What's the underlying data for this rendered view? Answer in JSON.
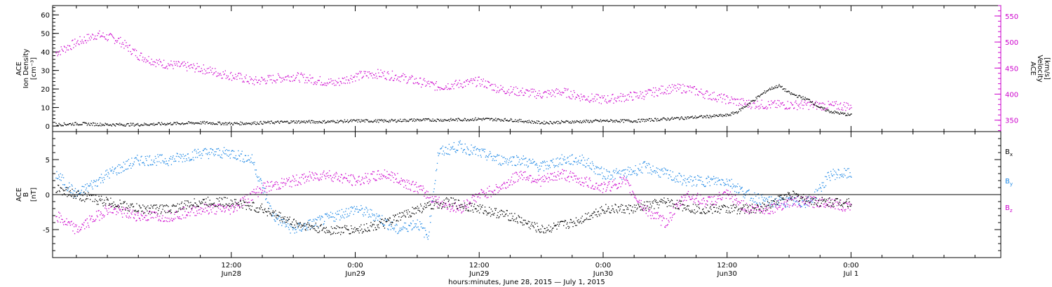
{
  "xlabel": "hours:minutes, June 28, 2015 — July  1, 2015",
  "x_ticks": [
    {
      "hour": 12,
      "time": "12:00",
      "day": "Jun28"
    },
    {
      "hour": 24,
      "time": "0:00",
      "day": "Jun29"
    },
    {
      "hour": 36,
      "time": "12:00",
      "day": "Jun29"
    },
    {
      "hour": 48,
      "time": "0:00",
      "day": "Jun30"
    },
    {
      "hour": 60,
      "time": "12:00",
      "day": "Jun30"
    },
    {
      "hour": 72,
      "time": "0:00",
      "day": "Jul 1"
    }
  ],
  "chart_data": [
    {
      "type": "scatter",
      "panel": "top",
      "xlabel": "hours:minutes, June 28, 2015 — July  1, 2015",
      "x_unit": "hours since 2015-06-28 00:00",
      "xlim": [
        -5.3,
        86.5
      ],
      "ylabel_left": [
        "ACE",
        "Ion Density",
        "[cm⁻³]"
      ],
      "ylabel_right": [
        "ACE",
        "Velocity",
        "[km/s]"
      ],
      "ylim_left": [
        -3,
        65
      ],
      "ylim_right": [
        328,
        570
      ],
      "yticks_left": [
        0,
        10,
        20,
        30,
        40,
        50,
        60
      ],
      "yticks_right": [
        350,
        400,
        450,
        500,
        550
      ],
      "series": [
        {
          "axis": "left",
          "color": "#000000",
          "points": [
            [
              -5,
              1
            ],
            [
              -3,
              1.5
            ],
            [
              0,
              1
            ],
            [
              3,
              1
            ],
            [
              6,
              1.5
            ],
            [
              9,
              2
            ],
            [
              12,
              1.5
            ],
            [
              15,
              2
            ],
            [
              18,
              2.5
            ],
            [
              21,
              2.5
            ],
            [
              24,
              3
            ],
            [
              27,
              3
            ],
            [
              30,
              3.5
            ],
            [
              33,
              3.5
            ],
            [
              36,
              4
            ],
            [
              39,
              3.5
            ],
            [
              42,
              2
            ],
            [
              45,
              2.5
            ],
            [
              48,
              3
            ],
            [
              51,
              3
            ],
            [
              54,
              4
            ],
            [
              57,
              5
            ],
            [
              60,
              6
            ],
            [
              61,
              8
            ],
            [
              62,
              12
            ],
            [
              63,
              16
            ],
            [
              64,
              20
            ],
            [
              65,
              22
            ],
            [
              66,
              18
            ],
            [
              67,
              16
            ],
            [
              68,
              14
            ],
            [
              69,
              10
            ],
            [
              70,
              8
            ],
            [
              71,
              7
            ],
            [
              72,
              6
            ]
          ]
        },
        {
          "axis": "right",
          "color": "#cc00cc",
          "points": [
            [
              -5,
              480
            ],
            [
              -3,
              500
            ],
            [
              -1,
              515
            ],
            [
              1,
              505
            ],
            [
              3,
              475
            ],
            [
              5,
              460
            ],
            [
              7,
              455
            ],
            [
              9,
              450
            ],
            [
              11,
              440
            ],
            [
              13,
              432
            ],
            [
              14,
              425
            ],
            [
              16,
              430
            ],
            [
              18,
              435
            ],
            [
              20,
              428
            ],
            [
              22,
              422
            ],
            [
              24,
              435
            ],
            [
              26,
              440
            ],
            [
              28,
              435
            ],
            [
              30,
              425
            ],
            [
              32,
              415
            ],
            [
              34,
              420
            ],
            [
              36,
              425
            ],
            [
              38,
              410
            ],
            [
              40,
              405
            ],
            [
              42,
              400
            ],
            [
              44,
              405
            ],
            [
              46,
              395
            ],
            [
              48,
              390
            ],
            [
              50,
              395
            ],
            [
              52,
              400
            ],
            [
              54,
              410
            ],
            [
              56,
              412
            ],
            [
              58,
              400
            ],
            [
              60,
              390
            ],
            [
              62,
              382
            ],
            [
              64,
              380
            ],
            [
              66,
              380
            ],
            [
              68,
              380
            ],
            [
              70,
              378
            ],
            [
              72,
              378
            ]
          ]
        }
      ]
    },
    {
      "type": "scatter",
      "panel": "bottom",
      "x_unit": "hours since 2015-06-28 00:00",
      "xlim": [
        -5.3,
        86.5
      ],
      "ylabel": [
        "ACE",
        "B",
        "[nT]"
      ],
      "ylim": [
        -9,
        9
      ],
      "yticks": [
        -5,
        0,
        5
      ],
      "zero_line": true,
      "series": [
        {
          "name": "B",
          "sub": "x",
          "color": "#000000",
          "points": [
            [
              -5,
              1
            ],
            [
              -3,
              0
            ],
            [
              0,
              -1
            ],
            [
              3,
              -2
            ],
            [
              6,
              -2
            ],
            [
              9,
              -1
            ],
            [
              12,
              -1
            ],
            [
              15,
              -2
            ],
            [
              18,
              -4
            ],
            [
              21,
              -5
            ],
            [
              24,
              -5
            ],
            [
              27,
              -4
            ],
            [
              30,
              -2
            ],
            [
              33,
              -1
            ],
            [
              36,
              -2
            ],
            [
              39,
              -3
            ],
            [
              42,
              -5
            ],
            [
              45,
              -4
            ],
            [
              48,
              -2
            ],
            [
              51,
              -2
            ],
            [
              54,
              -1
            ],
            [
              57,
              -2
            ],
            [
              60,
              -2
            ],
            [
              63,
              -2
            ],
            [
              66,
              0
            ],
            [
              69,
              -1
            ],
            [
              72,
              -1
            ]
          ]
        },
        {
          "name": "B",
          "sub": "y",
          "color": "#1e88e5",
          "points": [
            [
              -5,
              3
            ],
            [
              -3,
              0
            ],
            [
              0,
              3
            ],
            [
              3,
              5
            ],
            [
              6,
              5
            ],
            [
              9,
              6
            ],
            [
              12,
              6
            ],
            [
              14,
              5
            ],
            [
              16,
              -3
            ],
            [
              18,
              -5
            ],
            [
              20,
              -4
            ],
            [
              22,
              -3
            ],
            [
              24,
              -2
            ],
            [
              26,
              -3
            ],
            [
              28,
              -5
            ],
            [
              30,
              -4
            ],
            [
              31,
              -6
            ],
            [
              32,
              6
            ],
            [
              34,
              7
            ],
            [
              36,
              6
            ],
            [
              38,
              5
            ],
            [
              40,
              5
            ],
            [
              42,
              4
            ],
            [
              44,
              5
            ],
            [
              46,
              5
            ],
            [
              48,
              3
            ],
            [
              50,
              3
            ],
            [
              52,
              4
            ],
            [
              54,
              3
            ],
            [
              56,
              2
            ],
            [
              58,
              2
            ],
            [
              60,
              2
            ],
            [
              62,
              0
            ],
            [
              64,
              -1
            ],
            [
              66,
              -1
            ],
            [
              68,
              -1
            ],
            [
              70,
              3
            ],
            [
              72,
              3
            ]
          ]
        },
        {
          "name": "B",
          "sub": "z",
          "color": "#cc00cc",
          "points": [
            [
              -5,
              -3
            ],
            [
              -3,
              -5
            ],
            [
              0,
              -2
            ],
            [
              3,
              -3
            ],
            [
              6,
              -3
            ],
            [
              9,
              -2
            ],
            [
              12,
              -2
            ],
            [
              15,
              1
            ],
            [
              18,
              2
            ],
            [
              21,
              3
            ],
            [
              24,
              2
            ],
            [
              27,
              3
            ],
            [
              30,
              1
            ],
            [
              32,
              -1
            ],
            [
              34,
              -2
            ],
            [
              36,
              0
            ],
            [
              38,
              1
            ],
            [
              40,
              3
            ],
            [
              42,
              2
            ],
            [
              44,
              3
            ],
            [
              46,
              2
            ],
            [
              48,
              1
            ],
            [
              50,
              2
            ],
            [
              52,
              -2
            ],
            [
              54,
              -4
            ],
            [
              56,
              0
            ],
            [
              58,
              -1
            ],
            [
              60,
              0
            ],
            [
              62,
              -2
            ],
            [
              64,
              -2
            ],
            [
              66,
              -1
            ],
            [
              68,
              -1
            ],
            [
              70,
              -1
            ],
            [
              72,
              -2
            ]
          ]
        }
      ]
    }
  ]
}
